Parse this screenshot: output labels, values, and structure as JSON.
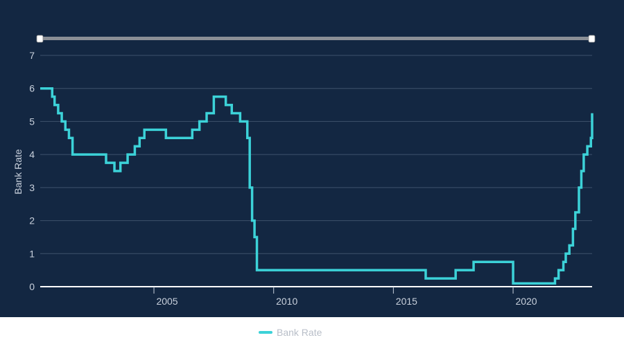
{
  "chart_data": {
    "type": "line",
    "step": true,
    "ylabel": "Bank Rate",
    "xlabel": "",
    "xlim": [
      2000.25,
      2023.3
    ],
    "ylim": [
      0,
      7
    ],
    "y_ticks": [
      0,
      1,
      2,
      3,
      4,
      5,
      6,
      7
    ],
    "x_ticks": [
      2005,
      2010,
      2015,
      2020
    ],
    "grid": true,
    "legend_position": "bottom-center",
    "range_slider": true,
    "line_color": "#3cd2d8",
    "series": [
      {
        "name": "Bank Rate",
        "x": [
          2000.25,
          2000.5,
          2000.75,
          2000.85,
          2001.0,
          2001.15,
          2001.3,
          2001.45,
          2001.6,
          2002.0,
          2002.5,
          2002.55,
          2003.0,
          2003.35,
          2003.6,
          2003.9,
          2004.2,
          2004.4,
          2004.6,
          2005.5,
          2006.2,
          2006.6,
          2006.9,
          2007.2,
          2007.5,
          2008.0,
          2008.25,
          2008.6,
          2008.8,
          2008.9,
          2009.0,
          2009.1,
          2009.2,
          2009.3,
          2016.35,
          2017.6,
          2018.35,
          2020.0,
          2020.2,
          2021.75,
          2021.9,
          2022.1,
          2022.2,
          2022.35,
          2022.5,
          2022.6,
          2022.75,
          2022.85,
          2022.95,
          2023.1,
          2023.25,
          2023.3
        ],
        "y": [
          6.0,
          6.0,
          5.75,
          5.5,
          5.25,
          5.0,
          4.75,
          4.5,
          4.0,
          4.0,
          4.0,
          4.0,
          3.75,
          3.5,
          3.75,
          4.0,
          4.25,
          4.5,
          4.75,
          4.5,
          4.5,
          4.75,
          5.0,
          5.25,
          5.75,
          5.5,
          5.25,
          5.0,
          5.0,
          4.5,
          3.0,
          2.0,
          1.5,
          0.5,
          0.25,
          0.5,
          0.75,
          0.1,
          0.1,
          0.25,
          0.5,
          0.75,
          1.0,
          1.25,
          1.75,
          2.25,
          3.0,
          3.5,
          4.0,
          4.25,
          4.5,
          5.25
        ]
      }
    ]
  }
}
